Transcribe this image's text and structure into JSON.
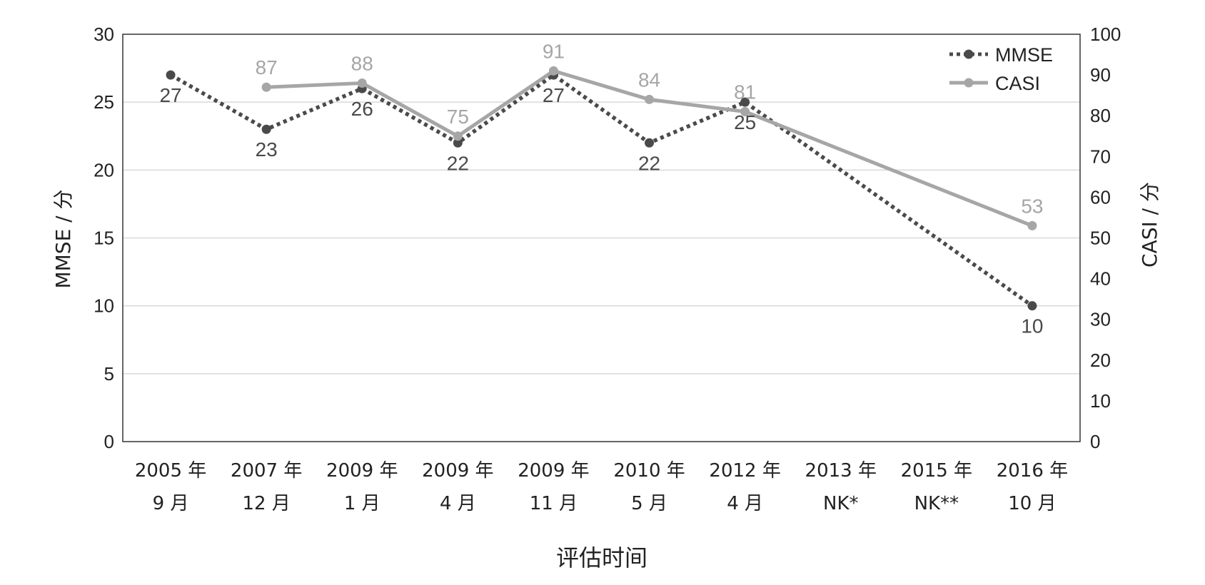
{
  "chart_data": {
    "type": "line",
    "xlabel": "评估时间",
    "ylabel_left": "MMSE / 分",
    "ylabel_right": "CASI / 分",
    "ylim_left": [
      0,
      30
    ],
    "ylim_right": [
      0,
      100
    ],
    "yticks_left": [
      "0",
      "5",
      "10",
      "15",
      "20",
      "25",
      "30"
    ],
    "yticks_right": [
      "0",
      "10",
      "20",
      "30",
      "40",
      "50",
      "60",
      "70",
      "80",
      "90",
      "100"
    ],
    "categories": [
      [
        "2005 年",
        "9 月"
      ],
      [
        "2007 年",
        "12 月"
      ],
      [
        "2009 年",
        "1 月"
      ],
      [
        "2009 年",
        "4 月"
      ],
      [
        "2009 年",
        "11 月"
      ],
      [
        "2010 年",
        "5 月"
      ],
      [
        "2012 年",
        "4 月"
      ],
      [
        "2013 年",
        "NK*"
      ],
      [
        "2015 年",
        "NK**"
      ],
      [
        "2016 年",
        "10 月"
      ]
    ],
    "grid": true,
    "legend_position": "top-right",
    "series": [
      {
        "name": "MMSE",
        "axis": "left",
        "style": "dotted",
        "color": "#4a4a4a",
        "values": [
          27,
          23,
          26,
          22,
          27,
          22,
          25,
          null,
          null,
          10
        ]
      },
      {
        "name": "CASI",
        "axis": "right",
        "style": "solid",
        "color": "#a6a6a6",
        "values": [
          null,
          87,
          88,
          75,
          91,
          84,
          81,
          null,
          null,
          53
        ]
      }
    ]
  }
}
